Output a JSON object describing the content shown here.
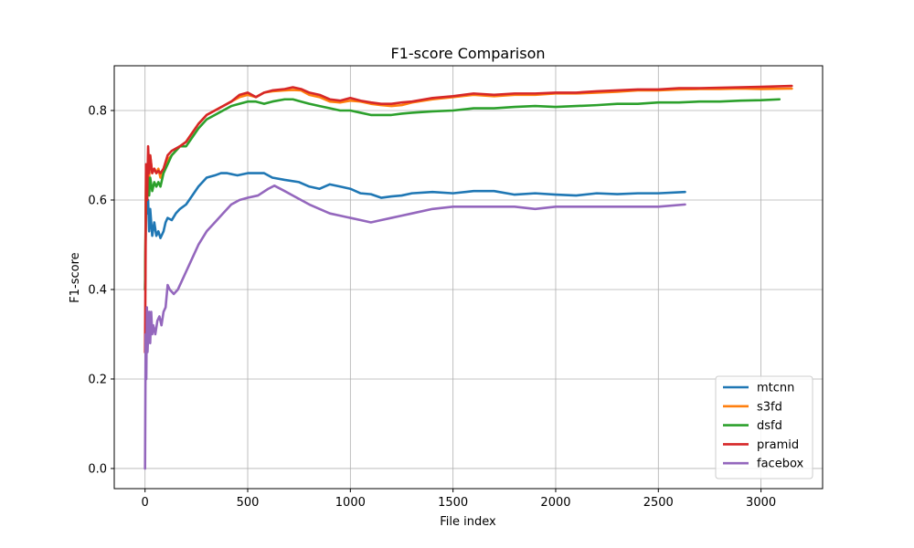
{
  "chart_data": {
    "type": "line",
    "title": "F1-score Comparison",
    "xlabel": "File index",
    "ylabel": "F1-score",
    "xlim": [
      -150,
      3300
    ],
    "ylim": [
      -0.045,
      0.9
    ],
    "grid": true,
    "legend_position": "lower-right",
    "xticks": [
      0,
      500,
      1000,
      1500,
      2000,
      2500,
      3000
    ],
    "xtick_labels": [
      "0",
      "500",
      "1000",
      "1500",
      "2000",
      "2500",
      "3000"
    ],
    "yticks": [
      0.0,
      0.2,
      0.4,
      0.6,
      0.8
    ],
    "ytick_labels": [
      "0.0",
      "0.2",
      "0.4",
      "0.6",
      "0.8"
    ],
    "series": [
      {
        "name": "mtcnn",
        "color": "#1f77b4",
        "x": [
          0,
          5,
          10,
          15,
          20,
          25,
          35,
          45,
          55,
          65,
          75,
          90,
          100,
          110,
          130,
          150,
          170,
          200,
          230,
          260,
          300,
          340,
          370,
          400,
          450,
          500,
          550,
          580,
          620,
          680,
          750,
          800,
          850,
          900,
          950,
          1000,
          1050,
          1100,
          1150,
          1200,
          1250,
          1300,
          1400,
          1500,
          1600,
          1700,
          1800,
          1900,
          2000,
          2100,
          2200,
          2300,
          2400,
          2500,
          2630
        ],
        "y": [
          0.4,
          0.62,
          0.57,
          0.6,
          0.53,
          0.58,
          0.52,
          0.55,
          0.52,
          0.53,
          0.515,
          0.53,
          0.55,
          0.56,
          0.555,
          0.57,
          0.58,
          0.59,
          0.61,
          0.63,
          0.65,
          0.655,
          0.66,
          0.66,
          0.655,
          0.66,
          0.66,
          0.66,
          0.65,
          0.645,
          0.64,
          0.63,
          0.625,
          0.635,
          0.63,
          0.625,
          0.615,
          0.613,
          0.605,
          0.608,
          0.61,
          0.615,
          0.618,
          0.615,
          0.62,
          0.62,
          0.612,
          0.615,
          0.612,
          0.61,
          0.615,
          0.613,
          0.615,
          0.615,
          0.618
        ]
      },
      {
        "name": "s3fd",
        "color": "#ff7f0e",
        "x": [
          0,
          5,
          10,
          15,
          20,
          25,
          35,
          45,
          55,
          65,
          75,
          90,
          110,
          130,
          150,
          170,
          200,
          230,
          260,
          300,
          340,
          380,
          420,
          460,
          500,
          540,
          580,
          620,
          680,
          720,
          760,
          800,
          850,
          900,
          950,
          1000,
          1050,
          1100,
          1150,
          1200,
          1250,
          1300,
          1400,
          1500,
          1600,
          1700,
          1800,
          1900,
          2000,
          2100,
          2200,
          2300,
          2400,
          2500,
          2600,
          2700,
          2800,
          2900,
          3000,
          3150
        ],
        "y": [
          0.4,
          0.67,
          0.63,
          0.68,
          0.65,
          0.7,
          0.66,
          0.67,
          0.66,
          0.67,
          0.65,
          0.67,
          0.69,
          0.7,
          0.71,
          0.72,
          0.73,
          0.75,
          0.77,
          0.79,
          0.8,
          0.81,
          0.82,
          0.83,
          0.835,
          0.83,
          0.84,
          0.843,
          0.845,
          0.846,
          0.845,
          0.835,
          0.83,
          0.82,
          0.818,
          0.822,
          0.82,
          0.815,
          0.812,
          0.81,
          0.812,
          0.818,
          0.825,
          0.83,
          0.835,
          0.832,
          0.835,
          0.835,
          0.838,
          0.838,
          0.84,
          0.842,
          0.845,
          0.845,
          0.847,
          0.848,
          0.848,
          0.849,
          0.848,
          0.849
        ]
      },
      {
        "name": "dsfd",
        "color": "#2ca02c",
        "x": [
          0,
          5,
          10,
          15,
          20,
          25,
          35,
          45,
          55,
          65,
          75,
          90,
          110,
          130,
          150,
          170,
          200,
          230,
          260,
          300,
          340,
          380,
          420,
          460,
          500,
          540,
          580,
          620,
          680,
          720,
          760,
          800,
          850,
          900,
          950,
          1000,
          1050,
          1100,
          1150,
          1200,
          1250,
          1300,
          1400,
          1500,
          1600,
          1700,
          1800,
          1900,
          2000,
          2100,
          2200,
          2300,
          2400,
          2500,
          2600,
          2700,
          2800,
          2900,
          3000,
          3090
        ],
        "y": [
          0.4,
          0.64,
          0.6,
          0.65,
          0.61,
          0.65,
          0.62,
          0.64,
          0.63,
          0.64,
          0.63,
          0.66,
          0.68,
          0.7,
          0.71,
          0.72,
          0.72,
          0.74,
          0.76,
          0.78,
          0.79,
          0.8,
          0.81,
          0.815,
          0.82,
          0.82,
          0.815,
          0.82,
          0.825,
          0.825,
          0.82,
          0.815,
          0.81,
          0.805,
          0.8,
          0.8,
          0.795,
          0.79,
          0.79,
          0.79,
          0.793,
          0.795,
          0.798,
          0.8,
          0.805,
          0.805,
          0.808,
          0.81,
          0.808,
          0.81,
          0.812,
          0.815,
          0.815,
          0.818,
          0.818,
          0.82,
          0.82,
          0.822,
          0.823,
          0.825
        ]
      },
      {
        "name": "pramid",
        "color": "#d62728",
        "x": [
          0,
          5,
          10,
          15,
          20,
          25,
          35,
          45,
          55,
          65,
          75,
          90,
          110,
          130,
          150,
          170,
          200,
          230,
          260,
          300,
          340,
          380,
          420,
          460,
          500,
          540,
          580,
          620,
          680,
          720,
          760,
          800,
          850,
          900,
          950,
          1000,
          1050,
          1100,
          1150,
          1200,
          1250,
          1300,
          1400,
          1500,
          1600,
          1700,
          1800,
          1900,
          2000,
          2100,
          2200,
          2300,
          2400,
          2500,
          2600,
          2700,
          2800,
          2900,
          3000,
          3150
        ],
        "y": [
          0.26,
          0.68,
          0.6,
          0.72,
          0.66,
          0.7,
          0.66,
          0.67,
          0.66,
          0.665,
          0.66,
          0.67,
          0.7,
          0.71,
          0.715,
          0.72,
          0.73,
          0.75,
          0.77,
          0.79,
          0.8,
          0.81,
          0.82,
          0.835,
          0.84,
          0.83,
          0.84,
          0.845,
          0.848,
          0.852,
          0.848,
          0.84,
          0.835,
          0.825,
          0.822,
          0.828,
          0.822,
          0.818,
          0.815,
          0.815,
          0.818,
          0.82,
          0.828,
          0.832,
          0.838,
          0.835,
          0.838,
          0.838,
          0.84,
          0.84,
          0.843,
          0.845,
          0.847,
          0.847,
          0.85,
          0.85,
          0.851,
          0.852,
          0.853,
          0.855
        ]
      },
      {
        "name": "facebox",
        "color": "#9467bd",
        "x": [
          0,
          3,
          6,
          9,
          12,
          15,
          20,
          25,
          30,
          35,
          40,
          50,
          60,
          70,
          80,
          90,
          100,
          110,
          120,
          140,
          160,
          180,
          200,
          230,
          260,
          300,
          340,
          380,
          420,
          460,
          500,
          550,
          600,
          630,
          680,
          720,
          760,
          800,
          850,
          900,
          950,
          1000,
          1050,
          1100,
          1150,
          1200,
          1250,
          1300,
          1400,
          1500,
          1600,
          1700,
          1800,
          1900,
          2000,
          2100,
          2200,
          2300,
          2400,
          2500,
          2630
        ],
        "y": [
          0.0,
          0.3,
          0.2,
          0.36,
          0.26,
          0.3,
          0.35,
          0.28,
          0.35,
          0.3,
          0.32,
          0.3,
          0.33,
          0.34,
          0.32,
          0.35,
          0.36,
          0.41,
          0.4,
          0.39,
          0.4,
          0.42,
          0.44,
          0.47,
          0.5,
          0.53,
          0.55,
          0.57,
          0.59,
          0.6,
          0.605,
          0.61,
          0.625,
          0.632,
          0.62,
          0.61,
          0.6,
          0.59,
          0.58,
          0.57,
          0.565,
          0.56,
          0.555,
          0.55,
          0.555,
          0.56,
          0.565,
          0.57,
          0.58,
          0.585,
          0.585,
          0.585,
          0.585,
          0.58,
          0.585,
          0.585,
          0.585,
          0.585,
          0.585,
          0.585,
          0.59
        ]
      }
    ]
  }
}
